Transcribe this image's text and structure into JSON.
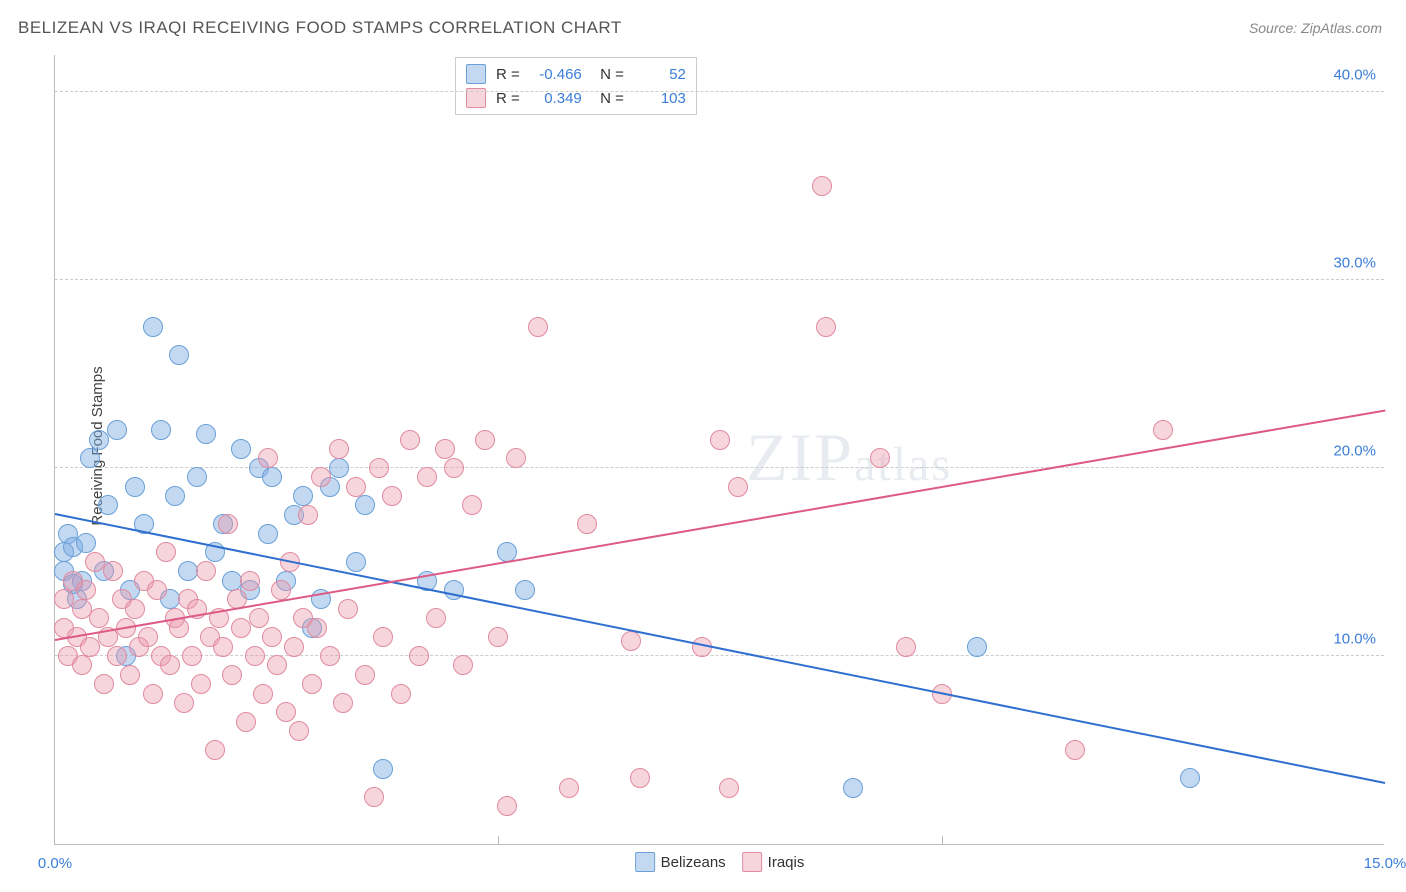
{
  "title": "BELIZEAN VS IRAQI RECEIVING FOOD STAMPS CORRELATION CHART",
  "source": "Source: ZipAtlas.com",
  "ylabel": "Receiving Food Stamps",
  "watermark_a": "ZIP",
  "watermark_b": "atlas",
  "chart": {
    "type": "scatter",
    "xlim": [
      0,
      15
    ],
    "ylim": [
      0,
      42
    ],
    "xticks": [
      {
        "v": 0,
        "l": "0.0%"
      },
      {
        "v": 15,
        "l": "15.0%"
      }
    ],
    "yticks": [
      {
        "v": 10,
        "l": "10.0%"
      },
      {
        "v": 20,
        "l": "20.0%"
      },
      {
        "v": 30,
        "l": "30.0%"
      },
      {
        "v": 40,
        "l": "40.0%"
      }
    ],
    "xminor": [
      5,
      10
    ],
    "series": [
      {
        "name": "Belizeans",
        "fill": "rgba(123,171,227,0.45)",
        "stroke": "#6aa0d8",
        "trend_color": "#2f6fd0",
        "r_value": "-0.466",
        "n_value": "52",
        "marker_r": 10,
        "trend": {
          "y0": 17.5,
          "y1": 3.2
        },
        "points": [
          [
            0.1,
            15.5
          ],
          [
            0.1,
            14.5
          ],
          [
            0.15,
            16.5
          ],
          [
            0.2,
            13.8
          ],
          [
            0.2,
            15.8
          ],
          [
            0.3,
            14.0
          ],
          [
            0.25,
            13.0
          ],
          [
            0.35,
            16.0
          ],
          [
            0.4,
            20.5
          ],
          [
            0.5,
            21.5
          ],
          [
            0.55,
            14.5
          ],
          [
            0.6,
            18.0
          ],
          [
            0.7,
            22.0
          ],
          [
            0.8,
            10.0
          ],
          [
            0.85,
            13.5
          ],
          [
            0.9,
            19.0
          ],
          [
            1.0,
            17.0
          ],
          [
            1.1,
            27.5
          ],
          [
            1.2,
            22.0
          ],
          [
            1.3,
            13.0
          ],
          [
            1.35,
            18.5
          ],
          [
            1.4,
            26.0
          ],
          [
            1.5,
            14.5
          ],
          [
            1.6,
            19.5
          ],
          [
            1.7,
            21.8
          ],
          [
            1.8,
            15.5
          ],
          [
            1.9,
            17.0
          ],
          [
            2.0,
            14.0
          ],
          [
            2.1,
            21.0
          ],
          [
            2.2,
            13.5
          ],
          [
            2.3,
            20.0
          ],
          [
            2.4,
            16.5
          ],
          [
            2.45,
            19.5
          ],
          [
            2.6,
            14.0
          ],
          [
            2.7,
            17.5
          ],
          [
            2.8,
            18.5
          ],
          [
            2.9,
            11.5
          ],
          [
            3.0,
            13.0
          ],
          [
            3.1,
            19.0
          ],
          [
            3.2,
            20.0
          ],
          [
            3.4,
            15.0
          ],
          [
            3.5,
            18.0
          ],
          [
            3.7,
            4.0
          ],
          [
            4.2,
            14.0
          ],
          [
            4.5,
            13.5
          ],
          [
            5.1,
            15.5
          ],
          [
            5.3,
            13.5
          ],
          [
            9.0,
            3.0
          ],
          [
            10.4,
            10.5
          ],
          [
            12.8,
            3.5
          ]
        ]
      },
      {
        "name": "Iraqis",
        "fill": "rgba(235,150,170,0.40)",
        "stroke": "#e08ba0",
        "trend_color": "#dd5a87",
        "r_value": "0.349",
        "n_value": "103",
        "marker_r": 10,
        "trend": {
          "y0": 10.8,
          "y1": 23.0
        },
        "points": [
          [
            0.1,
            11.5
          ],
          [
            0.1,
            13.0
          ],
          [
            0.15,
            10.0
          ],
          [
            0.2,
            14.0
          ],
          [
            0.25,
            11.0
          ],
          [
            0.3,
            12.5
          ],
          [
            0.3,
            9.5
          ],
          [
            0.35,
            13.5
          ],
          [
            0.4,
            10.5
          ],
          [
            0.45,
            15.0
          ],
          [
            0.5,
            12.0
          ],
          [
            0.55,
            8.5
          ],
          [
            0.6,
            11.0
          ],
          [
            0.65,
            14.5
          ],
          [
            0.7,
            10.0
          ],
          [
            0.75,
            13.0
          ],
          [
            0.8,
            11.5
          ],
          [
            0.85,
            9.0
          ],
          [
            0.9,
            12.5
          ],
          [
            0.95,
            10.5
          ],
          [
            1.0,
            14.0
          ],
          [
            1.05,
            11.0
          ],
          [
            1.1,
            8.0
          ],
          [
            1.15,
            13.5
          ],
          [
            1.2,
            10.0
          ],
          [
            1.25,
            15.5
          ],
          [
            1.3,
            9.5
          ],
          [
            1.35,
            12.0
          ],
          [
            1.4,
            11.5
          ],
          [
            1.45,
            7.5
          ],
          [
            1.5,
            13.0
          ],
          [
            1.55,
            10.0
          ],
          [
            1.6,
            12.5
          ],
          [
            1.65,
            8.5
          ],
          [
            1.7,
            14.5
          ],
          [
            1.75,
            11.0
          ],
          [
            1.8,
            5.0
          ],
          [
            1.85,
            12.0
          ],
          [
            1.9,
            10.5
          ],
          [
            1.95,
            17.0
          ],
          [
            2.0,
            9.0
          ],
          [
            2.05,
            13.0
          ],
          [
            2.1,
            11.5
          ],
          [
            2.15,
            6.5
          ],
          [
            2.2,
            14.0
          ],
          [
            2.25,
            10.0
          ],
          [
            2.3,
            12.0
          ],
          [
            2.35,
            8.0
          ],
          [
            2.4,
            20.5
          ],
          [
            2.45,
            11.0
          ],
          [
            2.5,
            9.5
          ],
          [
            2.55,
            13.5
          ],
          [
            2.6,
            7.0
          ],
          [
            2.65,
            15.0
          ],
          [
            2.7,
            10.5
          ],
          [
            2.75,
            6.0
          ],
          [
            2.8,
            12.0
          ],
          [
            2.85,
            17.5
          ],
          [
            2.9,
            8.5
          ],
          [
            2.95,
            11.5
          ],
          [
            3.0,
            19.5
          ],
          [
            3.1,
            10.0
          ],
          [
            3.2,
            21.0
          ],
          [
            3.25,
            7.5
          ],
          [
            3.3,
            12.5
          ],
          [
            3.4,
            19.0
          ],
          [
            3.5,
            9.0
          ],
          [
            3.6,
            2.5
          ],
          [
            3.65,
            20.0
          ],
          [
            3.7,
            11.0
          ],
          [
            3.8,
            18.5
          ],
          [
            3.9,
            8.0
          ],
          [
            4.0,
            21.5
          ],
          [
            4.1,
            10.0
          ],
          [
            4.2,
            19.5
          ],
          [
            4.3,
            12.0
          ],
          [
            4.4,
            21.0
          ],
          [
            4.5,
            20.0
          ],
          [
            4.6,
            9.5
          ],
          [
            4.7,
            18.0
          ],
          [
            4.85,
            21.5
          ],
          [
            5.0,
            11.0
          ],
          [
            5.1,
            2.0
          ],
          [
            5.2,
            20.5
          ],
          [
            5.45,
            27.5
          ],
          [
            5.8,
            3.0
          ],
          [
            6.0,
            17.0
          ],
          [
            6.5,
            10.8
          ],
          [
            6.6,
            3.5
          ],
          [
            7.3,
            10.5
          ],
          [
            7.5,
            21.5
          ],
          [
            7.6,
            3.0
          ],
          [
            7.7,
            19.0
          ],
          [
            8.65,
            35.0
          ],
          [
            8.7,
            27.5
          ],
          [
            9.3,
            20.5
          ],
          [
            9.6,
            10.5
          ],
          [
            10.0,
            8.0
          ],
          [
            11.5,
            5.0
          ],
          [
            12.5,
            22.0
          ]
        ]
      }
    ]
  }
}
